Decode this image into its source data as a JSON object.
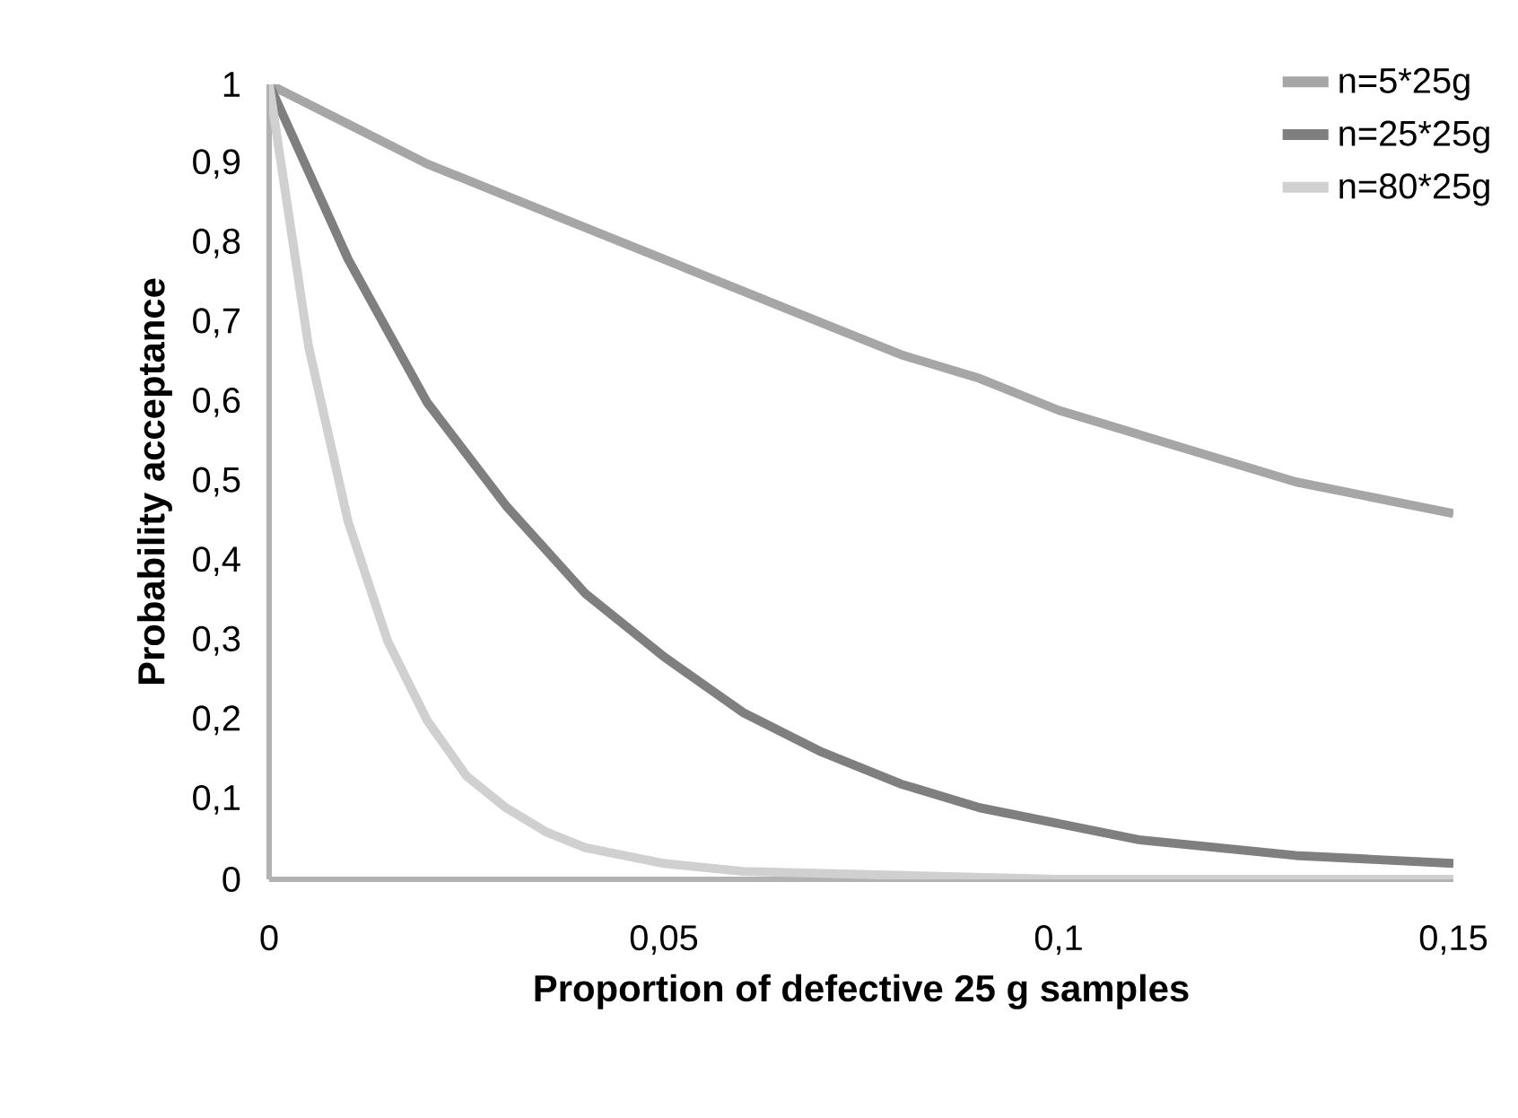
{
  "chart_data": {
    "type": "line",
    "xlabel": "Proportion of defective 25 g samples",
    "ylabel": "Probability acceptance",
    "series": [
      {
        "name": "n=5*25g",
        "color": "#a6a6a6",
        "x": [
          0,
          0.01,
          0.02,
          0.03,
          0.04,
          0.05,
          0.06,
          0.07,
          0.08,
          0.09,
          0.1,
          0.11,
          0.12,
          0.13,
          0.14,
          0.15
        ],
        "values": [
          1,
          0.95,
          0.9,
          0.86,
          0.82,
          0.78,
          0.74,
          0.7,
          0.66,
          0.63,
          0.59,
          0.56,
          0.53,
          0.5,
          0.48,
          0.46
        ]
      },
      {
        "name": "n=25*25g",
        "color": "#7f7f7f",
        "x": [
          0,
          0.01,
          0.02,
          0.03,
          0.04,
          0.05,
          0.06,
          0.07,
          0.08,
          0.09,
          0.1,
          0.11,
          0.12,
          0.13,
          0.14,
          0.15
        ],
        "values": [
          1,
          0.78,
          0.6,
          0.47,
          0.36,
          0.28,
          0.21,
          0.16,
          0.12,
          0.09,
          0.07,
          0.05,
          0.04,
          0.03,
          0.025,
          0.02
        ]
      },
      {
        "name": "n=80*25g",
        "color": "#d0d0d0",
        "x": [
          0,
          0.005,
          0.01,
          0.015,
          0.02,
          0.025,
          0.03,
          0.035,
          0.04,
          0.05,
          0.06,
          0.08,
          0.1,
          0.15
        ],
        "values": [
          1,
          0.67,
          0.45,
          0.3,
          0.2,
          0.13,
          0.09,
          0.06,
          0.04,
          0.02,
          0.01,
          0.005,
          0,
          0
        ]
      }
    ],
    "xlim": [
      0,
      0.15
    ],
    "ylim": [
      0,
      1
    ],
    "xticks": [
      0,
      {
        "value": 0.05,
        "label": "0,05"
      },
      {
        "value": 0.1,
        "label": "0,1"
      },
      {
        "value": 0.15,
        "label": "0,15"
      }
    ],
    "yticks": [
      0,
      {
        "value": 0.1,
        "label": "0,1"
      },
      {
        "value": 0.2,
        "label": "0,2"
      },
      {
        "value": 0.3,
        "label": "0,3"
      },
      {
        "value": 0.4,
        "label": "0,4"
      },
      {
        "value": 0.5,
        "label": "0,5"
      },
      {
        "value": 0.6,
        "label": "0,6"
      },
      {
        "value": 0.7,
        "label": "0,7"
      },
      {
        "value": 0.8,
        "label": "0,8"
      },
      {
        "value": 0.9,
        "label": "0,9"
      },
      1
    ],
    "grid": false,
    "legend": "top right",
    "marker": "none",
    "line_style": "solid"
  }
}
